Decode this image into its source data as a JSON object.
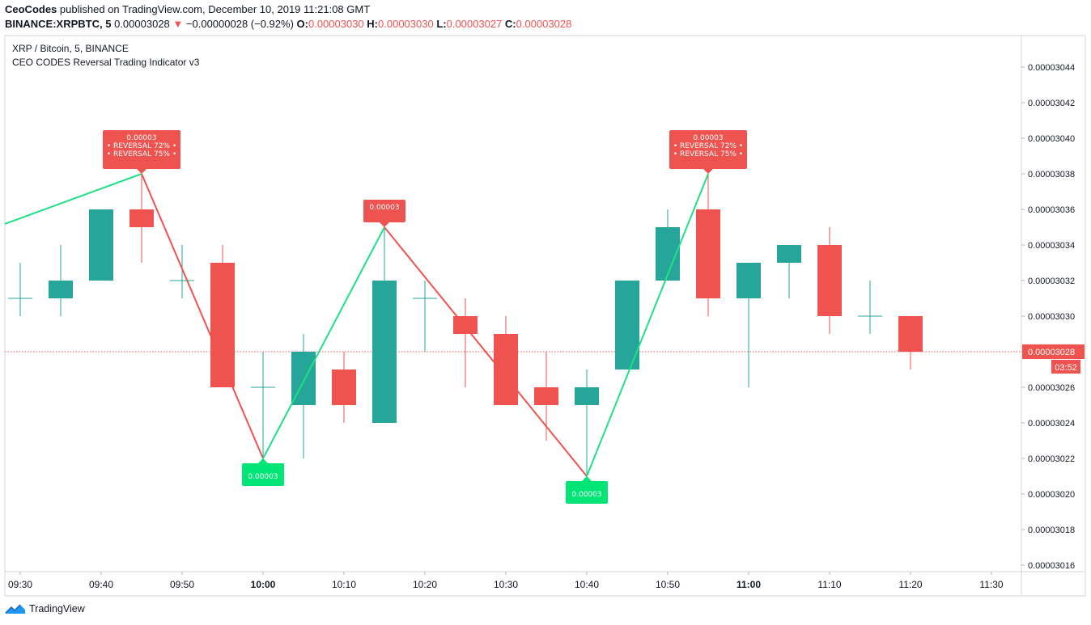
{
  "header": {
    "author": "CeoCodes",
    "published": " published on TradingView.com, December 10, 2019 11:21:08 GMT",
    "symbol": "BINANCE:XRPBTC, 5",
    "last": "0.00003028",
    "arrow": "▼",
    "change": "−0.00000028 (−0.92%)",
    "o_label": "O:",
    "o_value": "0.00003030",
    "h_label": "H:",
    "h_value": "0.00003030",
    "l_label": "L:",
    "l_value": "0.00003027",
    "c_label": "C:",
    "c_value": "0.00003028"
  },
  "pane": {
    "pair_title": "XRP / Bitcoin, 5, BINANCE",
    "indicator_title": "CEO CODES Reversal Trading Indicator v3"
  },
  "footer": {
    "brand": "TradingView"
  },
  "colors": {
    "up": "#26a69a",
    "down": "#ef5350",
    "zig_up": "#1ee085",
    "zig_down": "#ef5350",
    "label_green": "#00e676",
    "label_red": "#ef5350",
    "price_line": "#ef5350",
    "text": "#131722",
    "axis": "#787b86"
  },
  "chart_data": {
    "type": "candlestick",
    "interval": "5 minutes",
    "x_ticks": [
      "09:30",
      "09:40",
      "09:50",
      "10:00",
      "10:10",
      "10:20",
      "10:30",
      "10:40",
      "10:50",
      "11:00",
      "11:10",
      "11:20",
      "11:30"
    ],
    "x_ticks_bold": [
      "10:00",
      "11:00"
    ],
    "y_ticks": [
      "0.00003044",
      "0.00003042",
      "0.00003040",
      "0.00003038",
      "0.00003036",
      "0.00003034",
      "0.00003032",
      "0.00003030",
      "0.00003028",
      "0.00003026",
      "0.00003024",
      "0.00003022",
      "0.00003020",
      "0.00003018",
      "0.00003016"
    ],
    "ylim": [
      3.016e-05,
      3.044e-05
    ],
    "last_price": {
      "value": 3.028e-05,
      "label": "0.00003028",
      "countdown": "03:52"
    },
    "candles": [
      {
        "t": "09:30",
        "o": 3.031e-05,
        "h": 3.033e-05,
        "l": 3.03e-05,
        "c": 3.031e-05
      },
      {
        "t": "09:35",
        "o": 3.031e-05,
        "h": 3.034e-05,
        "l": 3.03e-05,
        "c": 3.032e-05
      },
      {
        "t": "09:40",
        "o": 3.032e-05,
        "h": 3.036e-05,
        "l": 3.032e-05,
        "c": 3.036e-05
      },
      {
        "t": "09:45",
        "o": 3.036e-05,
        "h": 3.038e-05,
        "l": 3.033e-05,
        "c": 3.035e-05
      },
      {
        "t": "09:50",
        "o": 3.032e-05,
        "h": 3.034e-05,
        "l": 3.031e-05,
        "c": 3.032e-05
      },
      {
        "t": "09:55",
        "o": 3.033e-05,
        "h": 3.034e-05,
        "l": 3.026e-05,
        "c": 3.026e-05
      },
      {
        "t": "10:00",
        "o": 3.026e-05,
        "h": 3.028e-05,
        "l": 3.022e-05,
        "c": 3.026e-05
      },
      {
        "t": "10:05",
        "o": 3.025e-05,
        "h": 3.029e-05,
        "l": 3.022e-05,
        "c": 3.028e-05
      },
      {
        "t": "10:10",
        "o": 3.027e-05,
        "h": 3.028e-05,
        "l": 3.024e-05,
        "c": 3.025e-05
      },
      {
        "t": "10:15",
        "o": 3.024e-05,
        "h": 3.035e-05,
        "l": 3.024e-05,
        "c": 3.032e-05
      },
      {
        "t": "10:20",
        "o": 3.031e-05,
        "h": 3.032e-05,
        "l": 3.028e-05,
        "c": 3.031e-05
      },
      {
        "t": "10:25",
        "o": 3.03e-05,
        "h": 3.031e-05,
        "l": 3.026e-05,
        "c": 3.029e-05
      },
      {
        "t": "10:30",
        "o": 3.029e-05,
        "h": 3.03e-05,
        "l": 3.025e-05,
        "c": 3.025e-05
      },
      {
        "t": "10:35",
        "o": 3.026e-05,
        "h": 3.028e-05,
        "l": 3.023e-05,
        "c": 3.025e-05
      },
      {
        "t": "10:40",
        "o": 3.025e-05,
        "h": 3.027e-05,
        "l": 3.021e-05,
        "c": 3.026e-05
      },
      {
        "t": "10:45",
        "o": 3.027e-05,
        "h": 3.032e-05,
        "l": 3.027e-05,
        "c": 3.032e-05
      },
      {
        "t": "10:50",
        "o": 3.032e-05,
        "h": 3.036e-05,
        "l": 3.032e-05,
        "c": 3.035e-05
      },
      {
        "t": "10:55",
        "o": 3.036e-05,
        "h": 3.038e-05,
        "l": 3.03e-05,
        "c": 3.031e-05
      },
      {
        "t": "11:00",
        "o": 3.031e-05,
        "h": 3.033e-05,
        "l": 3.026e-05,
        "c": 3.033e-05
      },
      {
        "t": "11:05",
        "o": 3.033e-05,
        "h": 3.034e-05,
        "l": 3.031e-05,
        "c": 3.034e-05
      },
      {
        "t": "11:10",
        "o": 3.034e-05,
        "h": 3.035e-05,
        "l": 3.029e-05,
        "c": 3.03e-05
      },
      {
        "t": "11:15",
        "o": 3.03e-05,
        "h": 3.032e-05,
        "l": 3.029e-05,
        "c": 3.03e-05
      },
      {
        "t": "11:20",
        "o": 3.03e-05,
        "h": 3.03e-05,
        "l": 3.027e-05,
        "c": 3.028e-05
      }
    ],
    "zigzag": [
      {
        "t": "09:15",
        "v": 3.033e-05
      },
      {
        "t": "09:45",
        "v": 3.038e-05
      },
      {
        "t": "10:00",
        "v": 3.022e-05
      },
      {
        "t": "10:15",
        "v": 3.035e-05
      },
      {
        "t": "10:40",
        "v": 3.021e-05
      },
      {
        "t": "10:55",
        "v": 3.038e-05
      }
    ],
    "pivot_labels": [
      {
        "t": "09:45",
        "v": 3.038e-05,
        "type": "high",
        "lines": [
          "0.00003",
          "• REVERSAL 72% •",
          "• REVERSAL 75% •"
        ]
      },
      {
        "t": "10:00",
        "v": 3.022e-05,
        "type": "low",
        "lines": [
          "0.00003"
        ]
      },
      {
        "t": "10:15",
        "v": 3.035e-05,
        "type": "high",
        "lines": [
          "0.00003"
        ]
      },
      {
        "t": "10:40",
        "v": 3.021e-05,
        "type": "low",
        "lines": [
          "0.00003"
        ]
      },
      {
        "t": "10:55",
        "v": 3.038e-05,
        "type": "high",
        "lines": [
          "0.00003",
          "• REVERSAL 72% •",
          "• REVERSAL 75% •"
        ]
      }
    ]
  }
}
